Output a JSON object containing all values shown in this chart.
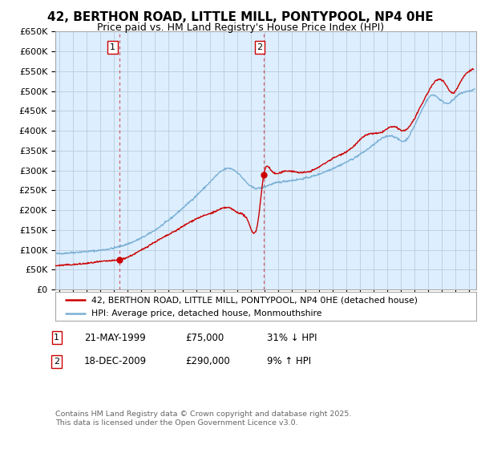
{
  "title": "42, BERTHON ROAD, LITTLE MILL, PONTYPOOL, NP4 0HE",
  "subtitle": "Price paid vs. HM Land Registry's House Price Index (HPI)",
  "ylabel_ticks": [
    "£0",
    "£50K",
    "£100K",
    "£150K",
    "£200K",
    "£250K",
    "£300K",
    "£350K",
    "£400K",
    "£450K",
    "£500K",
    "£550K",
    "£600K",
    "£650K"
  ],
  "ylim": [
    0,
    650000
  ],
  "yticks": [
    0,
    50000,
    100000,
    150000,
    200000,
    250000,
    300000,
    350000,
    400000,
    450000,
    500000,
    550000,
    600000,
    650000
  ],
  "xlim_start": 1994.7,
  "xlim_end": 2025.5,
  "transaction1": {
    "label": "1",
    "date": "21-MAY-1999",
    "price": 75000,
    "x": 1999.38,
    "pct": "31%",
    "dir": "↓"
  },
  "transaction2": {
    "label": "2",
    "date": "18-DEC-2009",
    "price": 290000,
    "x": 2009.96,
    "pct": "9%",
    "dir": "↑"
  },
  "line_red_color": "#cc0000",
  "line_blue_color": "#7ab0d4",
  "vline_color": "#cc0000",
  "background_color": "#ddeeff",
  "fig_bg": "#ffffff",
  "grid_color": "#bbccdd",
  "legend_label_red": "42, BERTHON ROAD, LITTLE MILL, PONTYPOOL, NP4 0HE (detached house)",
  "legend_label_blue": "HPI: Average price, detached house, Monmouthshire",
  "footer": "Contains HM Land Registry data © Crown copyright and database right 2025.\nThis data is licensed under the Open Government Licence v3.0.",
  "title_fontsize": 11,
  "subtitle_fontsize": 9,
  "hpi_anchors_x": [
    1994.7,
    1995.5,
    1997.0,
    1999.0,
    2001.0,
    2003.0,
    2004.5,
    2006.0,
    2007.5,
    2008.3,
    2009.0,
    2009.5,
    2010.5,
    2012.0,
    2013.5,
    2015.0,
    2016.5,
    2018.0,
    2019.5,
    2020.3,
    2020.8,
    2021.5,
    2022.3,
    2022.8,
    2023.5,
    2024.2,
    2025.0,
    2025.4
  ],
  "hpi_anchors_y": [
    90000,
    92000,
    96000,
    105000,
    130000,
    175000,
    220000,
    270000,
    305000,
    285000,
    260000,
    255000,
    265000,
    275000,
    285000,
    305000,
    330000,
    365000,
    385000,
    375000,
    400000,
    450000,
    490000,
    480000,
    470000,
    490000,
    500000,
    505000
  ],
  "red_anchors_x": [
    1994.7,
    1995.5,
    1997.0,
    1998.5,
    1999.38,
    2000.5,
    2002.0,
    2003.5,
    2005.0,
    2006.5,
    2007.5,
    2008.0,
    2008.8,
    2009.5,
    2009.96,
    2010.5,
    2011.5,
    2012.5,
    2013.5,
    2015.0,
    2016.5,
    2017.5,
    2018.5,
    2019.5,
    2020.2,
    2020.7,
    2021.5,
    2022.2,
    2022.8,
    2023.2,
    2023.8,
    2024.3,
    2024.8,
    2025.3
  ],
  "red_anchors_y": [
    60000,
    62000,
    66000,
    72000,
    75000,
    90000,
    120000,
    148000,
    178000,
    198000,
    205000,
    195000,
    172000,
    165000,
    290000,
    300000,
    298000,
    295000,
    300000,
    330000,
    360000,
    390000,
    395000,
    410000,
    400000,
    415000,
    465000,
    510000,
    530000,
    520000,
    495000,
    520000,
    545000,
    555000
  ]
}
